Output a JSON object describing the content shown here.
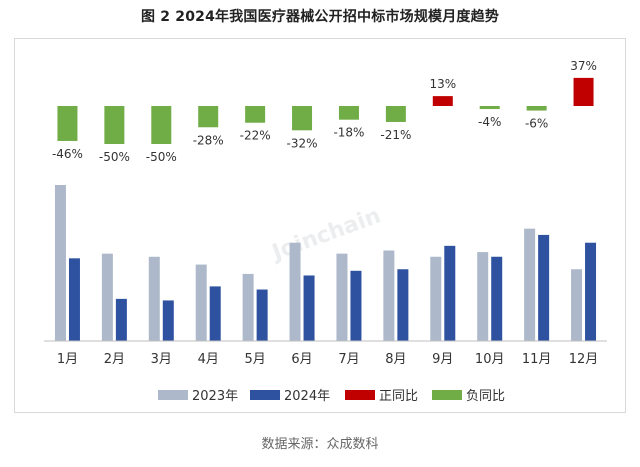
{
  "title": "图 2 2024年我国医疗器械公开招中标市场规模月度趋势",
  "source": "数据来源：众成数科",
  "watermark": "Joinchain",
  "colors": {
    "s2023": "#adb9ca",
    "s2024": "#2f52a0",
    "positive": "#c00000",
    "negative": "#70ad47"
  },
  "chart_data": [
    {
      "type": "bar",
      "categories": [
        "1月",
        "2月",
        "3月",
        "4月",
        "5月",
        "6月",
        "7月",
        "8月",
        "9月",
        "10月",
        "11月",
        "12月"
      ],
      "series": [
        {
          "name": "正同比",
          "values": [
            null,
            null,
            null,
            null,
            null,
            null,
            null,
            null,
            13,
            null,
            null,
            37
          ],
          "color": "#c00000"
        },
        {
          "name": "负同比",
          "values": [
            -46,
            -50,
            -50,
            -28,
            -22,
            -32,
            -18,
            -21,
            null,
            -4,
            -6,
            null
          ],
          "color": "#70ad47"
        }
      ],
      "data_labels": [
        "-46%",
        "-50%",
        "-50%",
        "-28%",
        "-22%",
        "-32%",
        "-18%",
        "-21%",
        "13%",
        "-4%",
        "-6%",
        "37%"
      ],
      "units": "%"
    },
    {
      "type": "bar",
      "categories": [
        "1月",
        "2月",
        "3月",
        "4月",
        "5月",
        "6月",
        "7月",
        "8月",
        "9月",
        "10月",
        "11月",
        "12月"
      ],
      "series": [
        {
          "name": "2023年",
          "values": [
            100,
            56,
            54,
            49,
            43,
            63,
            56,
            58,
            54,
            57,
            72,
            46
          ],
          "color": "#adb9ca"
        },
        {
          "name": "2024年",
          "values": [
            53,
            27,
            26,
            35,
            33,
            42,
            45,
            46,
            61,
            54,
            68,
            63
          ],
          "color": "#2f52a0"
        }
      ],
      "ylim": [
        0,
        100
      ]
    }
  ],
  "legend": [
    {
      "label": "2023年",
      "color": "#adb9ca"
    },
    {
      "label": "2024年",
      "color": "#2f52a0"
    },
    {
      "label": "正同比",
      "color": "#c00000"
    },
    {
      "label": "负同比",
      "color": "#70ad47"
    }
  ]
}
